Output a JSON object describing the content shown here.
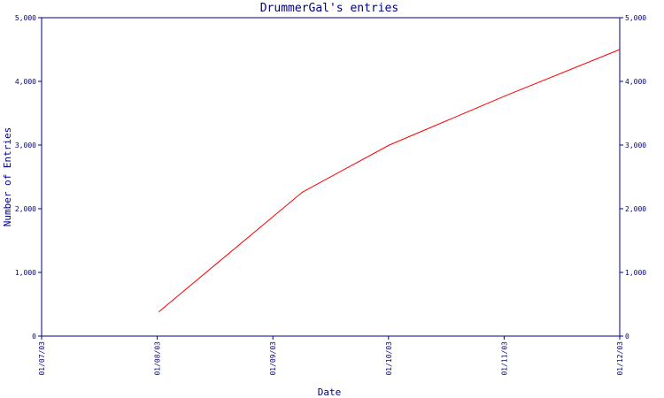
{
  "chart_data": {
    "type": "line",
    "title": "DrummerGal's entries",
    "xlabel": "Date",
    "ylabel": "Number of Entries",
    "x_ticks": [
      "01/07/03",
      "01/08/03",
      "01/09/03",
      "01/10/03",
      "01/11/03",
      "01/12/03"
    ],
    "xlim": [
      "2003-07-01",
      "2003-12-01"
    ],
    "y_ticks": [
      "0",
      "1,000",
      "2,000",
      "3,000",
      "4,000",
      "5,000"
    ],
    "ylim": [
      0,
      5000
    ],
    "grid": false,
    "series": [
      {
        "color": "#ff0000",
        "x": [
          "2003-08-01",
          "2003-09-08",
          "2003-10-01",
          "2003-11-01",
          "2003-12-01"
        ],
        "y": [
          380,
          2260,
          3000,
          3780,
          4500
        ]
      }
    ]
  },
  "colors": {
    "axis": "#000080",
    "line": "#ff0000",
    "background": "#ffffff"
  }
}
